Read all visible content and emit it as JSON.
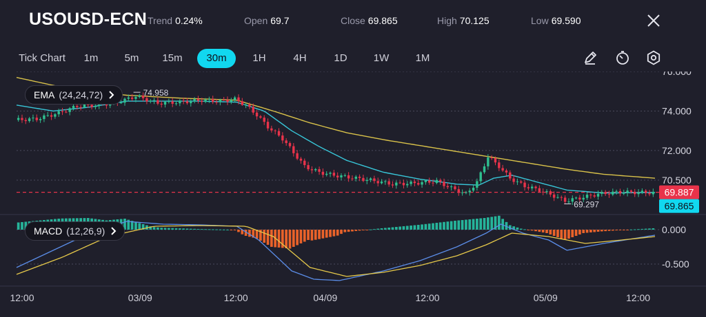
{
  "header": {
    "symbol": "USOUSD-ECN",
    "trend_label": "Trend",
    "trend_value": "0.24%",
    "open_label": "Open",
    "open_value": "69.7",
    "close_label": "Close",
    "close_value": "69.865",
    "high_label": "High",
    "high_value": "70.125",
    "low_label": "Low",
    "low_value": "69.590"
  },
  "toolbar": {
    "tabs": [
      "Tick Chart",
      "1m",
      "5m",
      "15m",
      "30m",
      "1H",
      "4H",
      "1D",
      "1W",
      "1M"
    ],
    "active_tab": "30m",
    "tools": [
      "draw-icon",
      "timer-icon",
      "settings-icon"
    ]
  },
  "indicators": {
    "ema": {
      "name": "EMA",
      "params": "(24,24,72)"
    },
    "macd": {
      "name": "MACD",
      "params": "(12,26,9)"
    }
  },
  "colors": {
    "background": "#1f1f2b",
    "up": "#2fbf8f",
    "down": "#e8334a",
    "ema_short": "#38c6d8",
    "ema_long": "#d9c24a",
    "macd_line": "#5b8de8",
    "signal_line": "#e6c94a",
    "hist_up": "#26b49a",
    "hist_down": "#e8622a",
    "accent": "#11d8f0"
  },
  "chart_data": {
    "type": "candlestick",
    "price_axis": {
      "ticks": [
        "76.000",
        "74.000",
        "72.000",
        "70.500"
      ],
      "ylim": [
        68.9,
        76.0
      ]
    },
    "macd_axis": {
      "ticks": [
        "0.000",
        "-0.500"
      ],
      "ylim": [
        -0.8,
        0.2
      ]
    },
    "time_axis": {
      "ticks": [
        "12:00",
        "03/09",
        "12:00",
        "04/09",
        "12:00",
        "05/09",
        "12:00"
      ]
    },
    "price_tags": {
      "current": "69.887",
      "close": "69.865"
    },
    "annotations": {
      "high": "74.958",
      "low": "69.297"
    },
    "close_path": [
      [
        0,
        73.55
      ],
      [
        12,
        73.6
      ],
      [
        24,
        73.9
      ],
      [
        34,
        74.25
      ],
      [
        46,
        74.3
      ],
      [
        58,
        74.5
      ],
      [
        66,
        74.75
      ],
      [
        78,
        74.4
      ],
      [
        90,
        74.45
      ],
      [
        102,
        74.55
      ],
      [
        112,
        74.5
      ],
      [
        120,
        74.6
      ],
      [
        126,
        74.3
      ],
      [
        132,
        73.8
      ],
      [
        138,
        73.2
      ],
      [
        146,
        72.6
      ],
      [
        152,
        71.9
      ],
      [
        158,
        71.2
      ],
      [
        166,
        70.9
      ],
      [
        174,
        70.75
      ],
      [
        182,
        70.65
      ],
      [
        194,
        70.5
      ],
      [
        206,
        70.3
      ],
      [
        218,
        70.35
      ],
      [
        230,
        70.45
      ],
      [
        238,
        70.1
      ],
      [
        246,
        69.8
      ],
      [
        252,
        70.4
      ],
      [
        258,
        71.7
      ],
      [
        264,
        71.2
      ],
      [
        270,
        70.6
      ],
      [
        278,
        70.2
      ],
      [
        286,
        70.0
      ],
      [
        294,
        69.7
      ],
      [
        300,
        69.45
      ],
      [
        308,
        69.6
      ],
      [
        318,
        69.8
      ],
      [
        330,
        69.9
      ],
      [
        340,
        69.88
      ],
      [
        348,
        69.87
      ]
    ],
    "ema_short": [
      [
        0,
        74.3
      ],
      [
        20,
        74.0
      ],
      [
        40,
        74.2
      ],
      [
        60,
        74.5
      ],
      [
        80,
        74.5
      ],
      [
        100,
        74.5
      ],
      [
        120,
        74.45
      ],
      [
        135,
        74.0
      ],
      [
        150,
        73.0
      ],
      [
        165,
        72.2
      ],
      [
        180,
        71.5
      ],
      [
        200,
        70.9
      ],
      [
        220,
        70.55
      ],
      [
        240,
        70.3
      ],
      [
        252,
        70.25
      ],
      [
        260,
        70.6
      ],
      [
        270,
        70.75
      ],
      [
        284,
        70.4
      ],
      [
        300,
        70.0
      ],
      [
        320,
        69.85
      ],
      [
        348,
        69.88
      ]
    ],
    "ema_long": [
      [
        0,
        75.7
      ],
      [
        30,
        75.1
      ],
      [
        60,
        74.8
      ],
      [
        90,
        74.65
      ],
      [
        120,
        74.55
      ],
      [
        140,
        74.0
      ],
      [
        160,
        73.4
      ],
      [
        180,
        72.9
      ],
      [
        200,
        72.55
      ],
      [
        220,
        72.25
      ],
      [
        240,
        71.95
      ],
      [
        260,
        71.65
      ],
      [
        280,
        71.35
      ],
      [
        300,
        71.05
      ],
      [
        320,
        70.8
      ],
      [
        348,
        70.6
      ]
    ],
    "macd_line": [
      [
        0,
        -0.55
      ],
      [
        20,
        -0.3
      ],
      [
        40,
        -0.05
      ],
      [
        60,
        0.12
      ],
      [
        80,
        0.08
      ],
      [
        100,
        0.07
      ],
      [
        120,
        0.05
      ],
      [
        132,
        -0.15
      ],
      [
        140,
        -0.35
      ],
      [
        150,
        -0.6
      ],
      [
        162,
        -0.72
      ],
      [
        176,
        -0.74
      ],
      [
        200,
        -0.6
      ],
      [
        220,
        -0.45
      ],
      [
        240,
        -0.25
      ],
      [
        256,
        -0.05
      ],
      [
        264,
        0.08
      ],
      [
        276,
        -0.05
      ],
      [
        290,
        -0.15
      ],
      [
        300,
        -0.3
      ],
      [
        320,
        -0.2
      ],
      [
        348,
        -0.08
      ]
    ],
    "signal_line": [
      [
        0,
        -0.65
      ],
      [
        25,
        -0.4
      ],
      [
        50,
        -0.1
      ],
      [
        75,
        0.05
      ],
      [
        100,
        0.06
      ],
      [
        125,
        0.05
      ],
      [
        140,
        -0.1
      ],
      [
        160,
        -0.55
      ],
      [
        180,
        -0.68
      ],
      [
        200,
        -0.62
      ],
      [
        220,
        -0.52
      ],
      [
        240,
        -0.38
      ],
      [
        256,
        -0.22
      ],
      [
        270,
        -0.05
      ],
      [
        290,
        -0.1
      ],
      [
        310,
        -0.2
      ],
      [
        330,
        -0.15
      ],
      [
        348,
        -0.1
      ]
    ]
  }
}
